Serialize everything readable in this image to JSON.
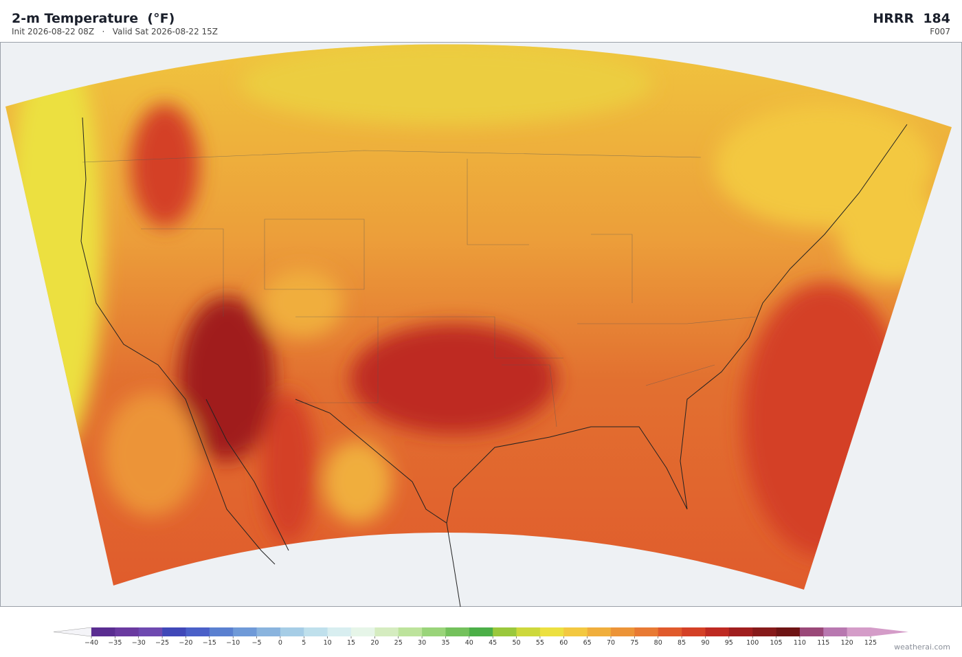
{
  "header": {
    "title": "2-m Temperature  (°F)",
    "subtitle": "Init 2026-08-22 08Z   ·   Valid Sat 2026-08-22 15Z",
    "model": "HRRR  184",
    "forecast_hour": "F007"
  },
  "colorbar": {
    "ticks": [
      {
        "value": -40,
        "label": "−40"
      },
      {
        "value": -35,
        "label": "−35"
      },
      {
        "value": -30,
        "label": "−30"
      },
      {
        "value": -25,
        "label": "−25"
      },
      {
        "value": -20,
        "label": "−20"
      },
      {
        "value": -15,
        "label": "−15"
      },
      {
        "value": -10,
        "label": "−10"
      },
      {
        "value": -5,
        "label": "−5"
      },
      0,
      5,
      10,
      15,
      20,
      25,
      30,
      35,
      40,
      45,
      50,
      55,
      60,
      65,
      70,
      75,
      80,
      85,
      90,
      95,
      100,
      105,
      110,
      115,
      120,
      125
    ],
    "colors": [
      "#5a2d91",
      "#6a3aa0",
      "#6e49b0",
      "#4048b8",
      "#4a60c8",
      "#5a80d0",
      "#6f9ad8",
      "#8ab4de",
      "#a6cde6",
      "#bfe0ec",
      "#d8eef0",
      "#e6f5e8",
      "#d5ecc0",
      "#bde39c",
      "#9ad47a",
      "#74c15c",
      "#4caf48",
      "#9ac83c",
      "#cdd83c",
      "#ece040",
      "#f3c840",
      "#f0ae3c",
      "#ec9438",
      "#e87a34",
      "#e05a2c",
      "#d44026",
      "#be2a22",
      "#a01e1e",
      "#861a1a",
      "#6e1414",
      "#9a4878",
      "#b878b0",
      "#d49cc8"
    ],
    "under_color": "#f4f4f8",
    "over_color": "#d49cc8"
  },
  "footer": {
    "watermark": "weatherai.com"
  }
}
